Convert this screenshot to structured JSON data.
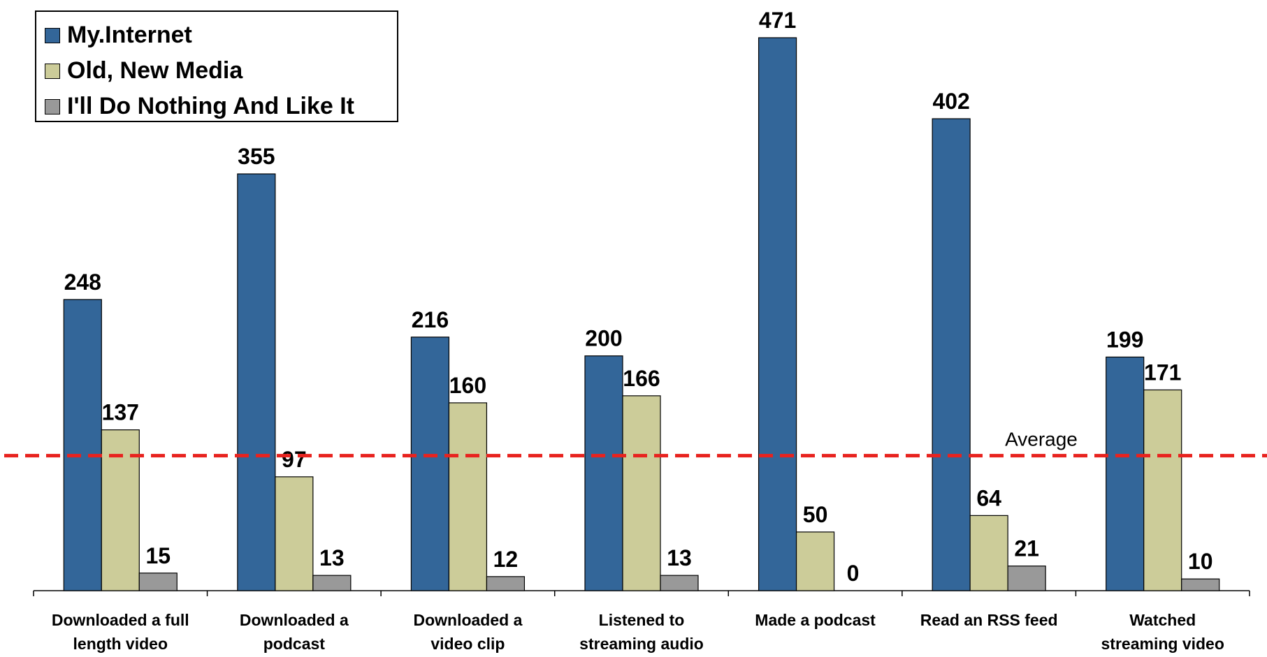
{
  "chart_data": {
    "type": "bar",
    "categories": [
      [
        "Downloaded a full",
        "length video"
      ],
      [
        "Downloaded a",
        "podcast"
      ],
      [
        "Downloaded a",
        "video clip"
      ],
      [
        "Listened to",
        "streaming audio"
      ],
      [
        "Made a podcast"
      ],
      [
        "Read an RSS feed"
      ],
      [
        "Watched",
        "streaming video"
      ]
    ],
    "series": [
      {
        "name": "My.Internet",
        "color": "#336699",
        "values": [
          248,
          355,
          216,
          200,
          471,
          402,
          199
        ]
      },
      {
        "name": "Old, New Media",
        "color": "#CCCC99",
        "values": [
          137,
          97,
          160,
          166,
          50,
          64,
          171
        ]
      },
      {
        "name": "I'll Do Nothing And Like It",
        "color": "#999999",
        "values": [
          15,
          13,
          12,
          13,
          0,
          21,
          10
        ]
      }
    ],
    "ylim": [
      0,
      500
    ],
    "average": {
      "label": "Average",
      "value": 115,
      "color": "#E8231F"
    },
    "legend_position": "top-left",
    "grid": false
  }
}
